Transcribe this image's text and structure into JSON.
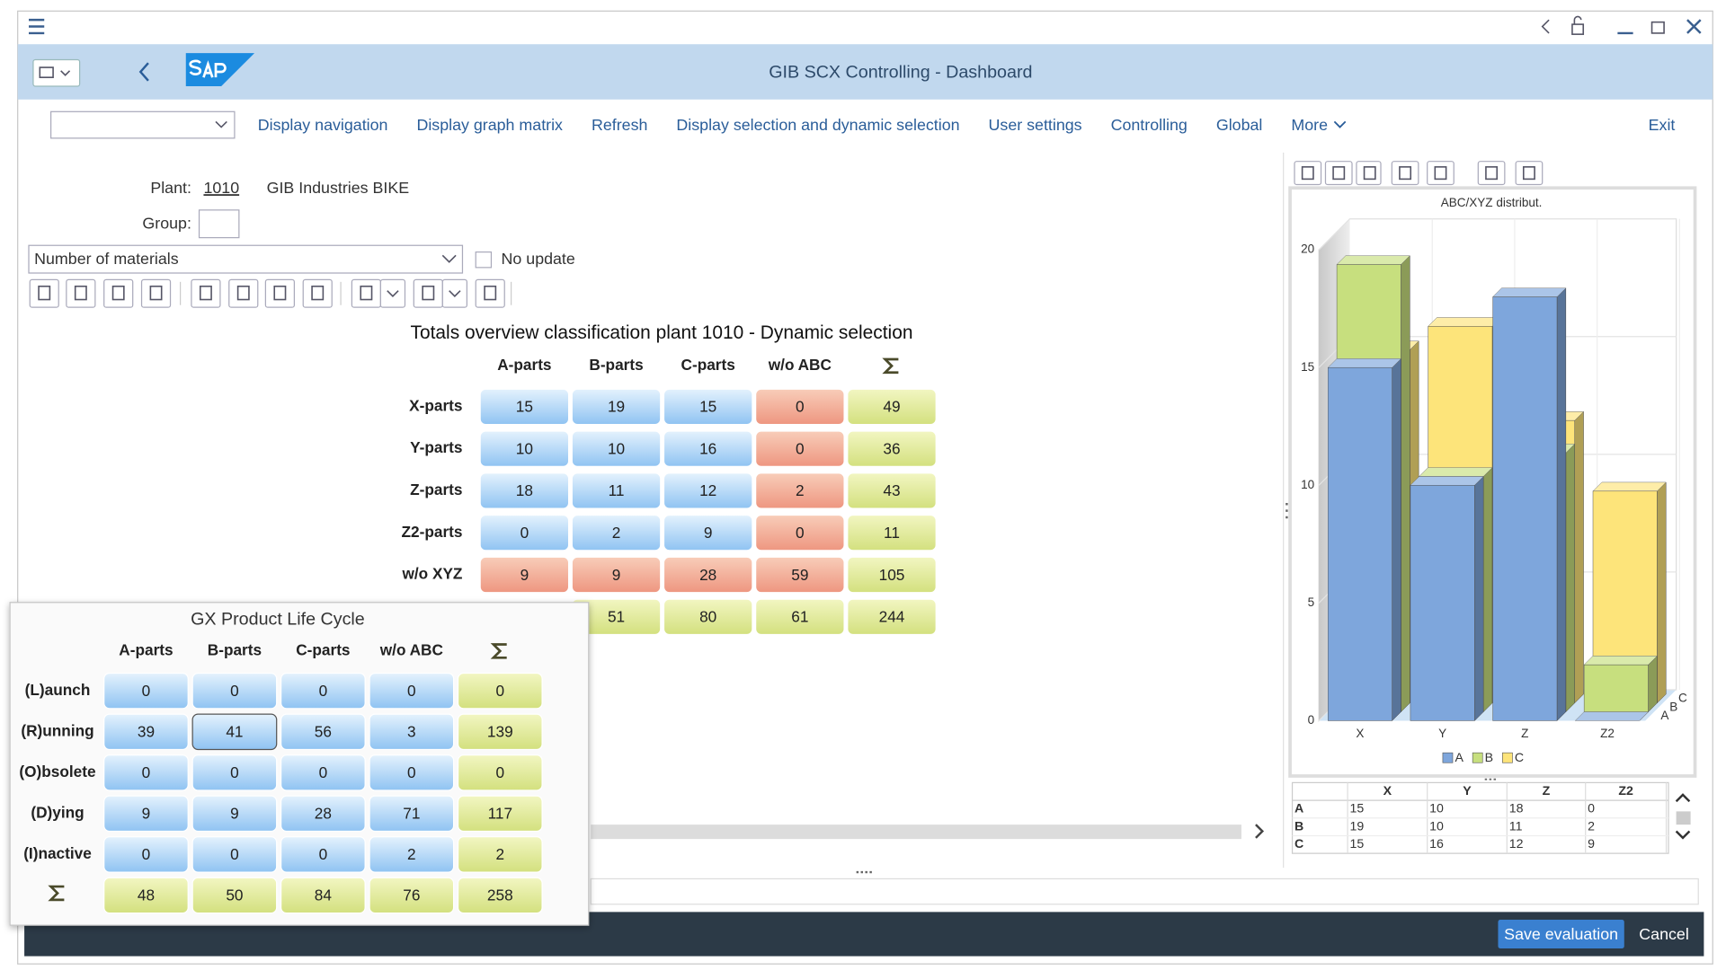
{
  "window": {
    "title": "GIB SCX Controlling - Dashboard"
  },
  "menu": [
    "Display navigation",
    "Display graph matrix",
    "Refresh",
    "Display selection and dynamic selection",
    "User settings",
    "Controlling",
    "Global",
    "More",
    "Exit"
  ],
  "form": {
    "plant_label": "Plant:",
    "plant": "1010",
    "plant_name": "GIB Industries BIKE",
    "group_label": "Group:",
    "measure": "Number of materials",
    "no_update": "No update"
  },
  "totals": {
    "title": "Totals overview classification plant 1010 - Dynamic selection",
    "columns": [
      "A-parts",
      "B-parts",
      "C-parts",
      "w/o ABC"
    ],
    "rows": [
      {
        "label": "X-parts",
        "values": [
          15,
          19,
          15,
          0,
          49
        ]
      },
      {
        "label": "Y-parts",
        "values": [
          10,
          10,
          16,
          0,
          36
        ]
      },
      {
        "label": "Z-parts",
        "values": [
          18,
          11,
          12,
          2,
          43
        ]
      },
      {
        "label": "Z2-parts",
        "values": [
          0,
          2,
          9,
          0,
          11
        ]
      },
      {
        "label": "w/o XYZ",
        "values": [
          9,
          9,
          28,
          59,
          105
        ]
      },
      {
        "label": null,
        "values": [
          null,
          51,
          80,
          61,
          244
        ]
      }
    ]
  },
  "lifecycle": {
    "title": "GX Product Life Cycle",
    "columns": [
      "A-parts",
      "B-parts",
      "C-parts",
      "w/o ABC"
    ],
    "rows": [
      {
        "label": "(L)aunch",
        "values": [
          0,
          0,
          0,
          0,
          0
        ]
      },
      {
        "label": "(R)unning",
        "values": [
          39,
          41,
          56,
          3,
          139
        ]
      },
      {
        "label": "(O)bsolete",
        "values": [
          0,
          0,
          0,
          0,
          0
        ]
      },
      {
        "label": "(D)ying",
        "values": [
          9,
          9,
          28,
          71,
          117
        ]
      },
      {
        "label": "(I)nactive",
        "values": [
          0,
          0,
          0,
          2,
          2
        ]
      },
      {
        "label": null,
        "values": [
          48,
          50,
          84,
          76,
          258
        ]
      }
    ]
  },
  "chart_data": {
    "type": "bar",
    "title": "ABC/XYZ distribut.",
    "categories": [
      "X",
      "Y",
      "Z",
      "Z2"
    ],
    "series": [
      {
        "name": "A",
        "color": "#7ea6dc",
        "values": [
          15,
          10,
          18,
          0
        ]
      },
      {
        "name": "B",
        "color": "#c7df7e",
        "values": [
          19,
          10,
          11,
          2
        ]
      },
      {
        "name": "C",
        "color": "#fde47a",
        "values": [
          15,
          16,
          12,
          9
        ]
      }
    ],
    "ylim": [
      0,
      20
    ],
    "yticks": [
      0,
      5,
      10,
      15,
      20
    ],
    "grid": true,
    "legend": "bottom"
  },
  "footer": {
    "save": "Save evaluation",
    "cancel": "Cancel"
  }
}
